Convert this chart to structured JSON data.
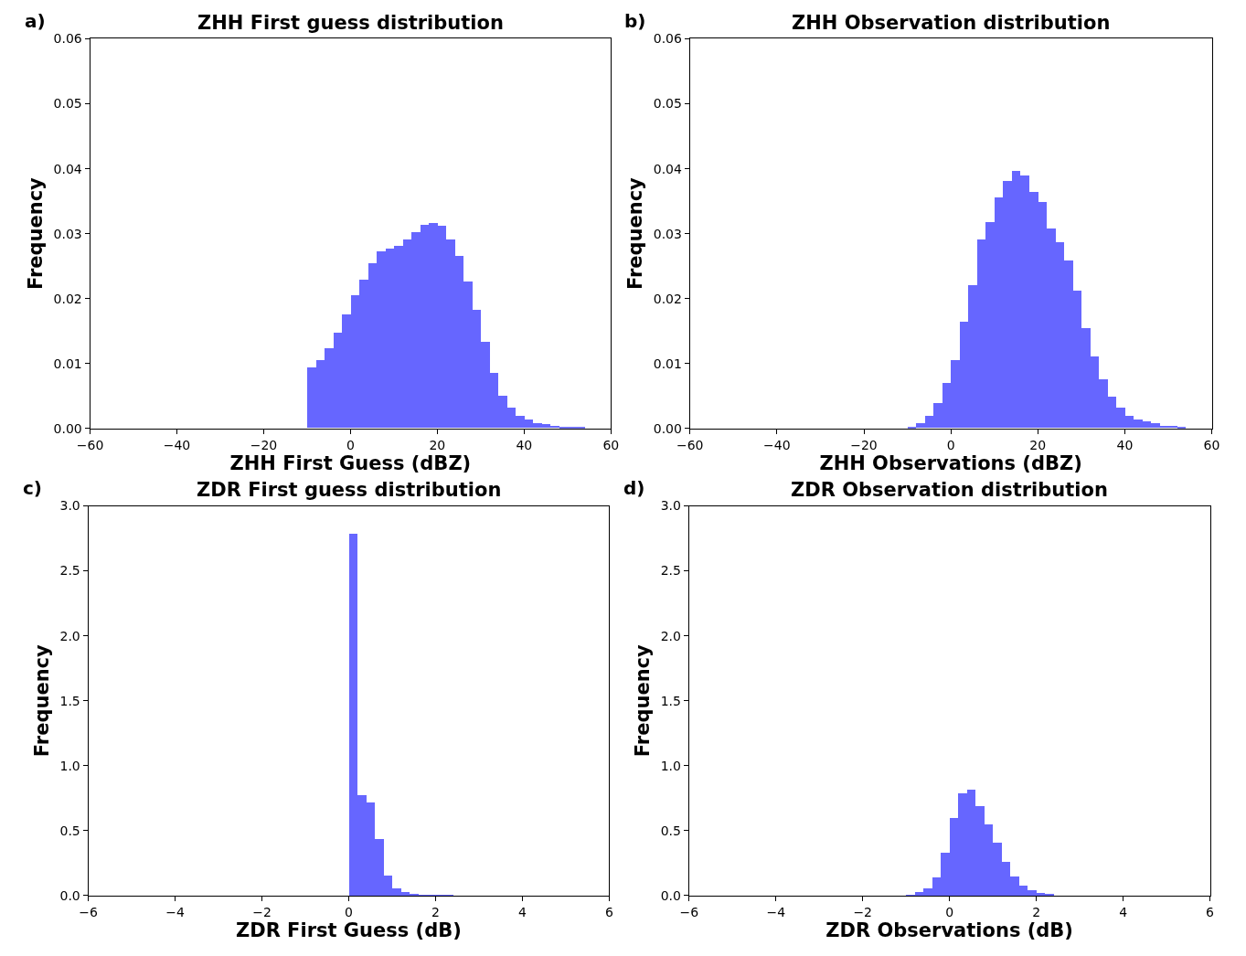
{
  "chart_data": [
    {
      "type": "histogram",
      "title": "ZHH First guess distribution",
      "annotations": [
        "a)"
      ],
      "xlabel": "ZHH First Guess (dBZ)",
      "ylabel": "Frequency",
      "color": "#6666ff",
      "bins": [
        -10,
        -8,
        -6,
        -4,
        -2,
        0,
        2,
        4,
        6,
        8,
        10,
        12,
        14,
        16,
        18,
        20,
        22,
        24,
        26,
        28,
        30,
        32,
        34,
        36,
        38,
        40,
        42,
        44,
        46,
        48,
        50,
        52,
        54
      ],
      "values": [
        0.0093,
        0.0105,
        0.0123,
        0.0147,
        0.0175,
        0.0205,
        0.0229,
        0.0254,
        0.0272,
        0.0277,
        0.028,
        0.029,
        0.0302,
        0.0313,
        0.0316,
        0.0312,
        0.029,
        0.0265,
        0.0226,
        0.0182,
        0.0133,
        0.0085,
        0.005,
        0.0032,
        0.0019,
        0.0013,
        0.0008,
        0.0006,
        0.0003,
        0.0002,
        0.0001,
        0.0001
      ],
      "xlim": [
        -60,
        60
      ],
      "xticks": [
        {
          "value": -60,
          "label": "−60"
        },
        {
          "value": -40,
          "label": "−40"
        },
        {
          "value": -20,
          "label": "−20"
        },
        0,
        20,
        40,
        60
      ],
      "ylim": [
        0,
        0.06
      ],
      "yticks": [
        {
          "value": 0,
          "label": "0.00"
        },
        {
          "value": 0.01,
          "label": "0.01"
        },
        {
          "value": 0.02,
          "label": "0.02"
        },
        {
          "value": 0.03,
          "label": "0.03"
        },
        {
          "value": 0.04,
          "label": "0.04"
        },
        {
          "value": 0.05,
          "label": "0.05"
        },
        {
          "value": 0.06,
          "label": "0.06"
        }
      ]
    },
    {
      "type": "histogram",
      "title": "ZHH Observation distribution",
      "annotations": [
        "b)"
      ],
      "xlabel": "ZHH Observations (dBZ)",
      "ylabel": "Frequency",
      "color": "#6666ff",
      "bins": [
        -10,
        -8,
        -6,
        -4,
        -2,
        0,
        2,
        4,
        6,
        8,
        10,
        12,
        14,
        16,
        18,
        20,
        22,
        24,
        26,
        28,
        30,
        32,
        34,
        36,
        38,
        40,
        42,
        44,
        46,
        48,
        50,
        52,
        54
      ],
      "values": [
        0.0001,
        0.0008,
        0.0019,
        0.0039,
        0.0069,
        0.0105,
        0.0164,
        0.022,
        0.029,
        0.0317,
        0.0355,
        0.0381,
        0.0396,
        0.0389,
        0.0363,
        0.0348,
        0.0308,
        0.0286,
        0.0258,
        0.0211,
        0.0154,
        0.011,
        0.0075,
        0.0049,
        0.0032,
        0.0019,
        0.0013,
        0.001,
        0.0007,
        0.0004,
        0.0003,
        0.0001
      ],
      "xlim": [
        -60,
        60
      ],
      "xticks": [
        {
          "value": -60,
          "label": "−60"
        },
        {
          "value": -40,
          "label": "−40"
        },
        {
          "value": -20,
          "label": "−20"
        },
        0,
        20,
        40,
        60
      ],
      "ylim": [
        0,
        0.06
      ],
      "yticks": [
        {
          "value": 0,
          "label": "0.00"
        },
        {
          "value": 0.01,
          "label": "0.01"
        },
        {
          "value": 0.02,
          "label": "0.02"
        },
        {
          "value": 0.03,
          "label": "0.03"
        },
        {
          "value": 0.04,
          "label": "0.04"
        },
        {
          "value": 0.05,
          "label": "0.05"
        },
        {
          "value": 0.06,
          "label": "0.06"
        }
      ]
    },
    {
      "type": "histogram",
      "title": "ZDR First guess distribution",
      "annotations": [
        "c)"
      ],
      "xlabel": "ZDR First Guess (dB)",
      "ylabel": "Frequency",
      "color": "#6666ff",
      "bins": [
        0,
        0.2,
        0.4,
        0.6,
        0.8,
        1.0,
        1.2,
        1.4,
        1.6,
        1.8,
        2.0,
        2.2,
        2.4,
        2.6,
        2.8
      ],
      "values": [
        2.79,
        0.78,
        0.72,
        0.44,
        0.16,
        0.06,
        0.03,
        0.02,
        0.01,
        0.007,
        0.005,
        0.005,
        0.002,
        0.002
      ],
      "xlim": [
        -6,
        6
      ],
      "xticks": [
        {
          "value": -6,
          "label": "−6"
        },
        {
          "value": -4,
          "label": "−4"
        },
        {
          "value": -2,
          "label": "−2"
        },
        0,
        2,
        4,
        6
      ],
      "ylim": [
        0,
        3.0
      ],
      "yticks": [
        {
          "value": 0,
          "label": "0.0"
        },
        0.5,
        {
          "value": 1,
          "label": "1.0"
        },
        1.5,
        {
          "value": 2,
          "label": "2.0"
        },
        2.5,
        {
          "value": 3,
          "label": "3.0"
        }
      ]
    },
    {
      "type": "histogram",
      "title": "ZDR Observation distribution",
      "annotations": [
        "d)"
      ],
      "xlabel": "ZDR Observations (dB)",
      "ylabel": "Frequency",
      "color": "#6666ff",
      "bins": [
        -1.0,
        -0.8,
        -0.6,
        -0.4,
        -0.2,
        0,
        0.2,
        0.4,
        0.6,
        0.8,
        1.0,
        1.2,
        1.4,
        1.6,
        1.8,
        2.0,
        2.2,
        2.4
      ],
      "values": [
        0.012,
        0.028,
        0.062,
        0.146,
        0.333,
        0.603,
        0.79,
        0.818,
        0.693,
        0.554,
        0.409,
        0.263,
        0.152,
        0.083,
        0.042,
        0.021,
        0.014
      ],
      "xlim": [
        -6,
        6
      ],
      "xticks": [
        {
          "value": -6,
          "label": "−6"
        },
        {
          "value": -4,
          "label": "−4"
        },
        {
          "value": -2,
          "label": "−2"
        },
        0,
        2,
        4,
        6
      ],
      "ylim": [
        0,
        3.0
      ],
      "yticks": [
        {
          "value": 0,
          "label": "0.0"
        },
        0.5,
        {
          "value": 1,
          "label": "1.0"
        },
        1.5,
        {
          "value": 2,
          "label": "2.0"
        },
        2.5,
        {
          "value": 3,
          "label": "3.0"
        }
      ]
    }
  ]
}
